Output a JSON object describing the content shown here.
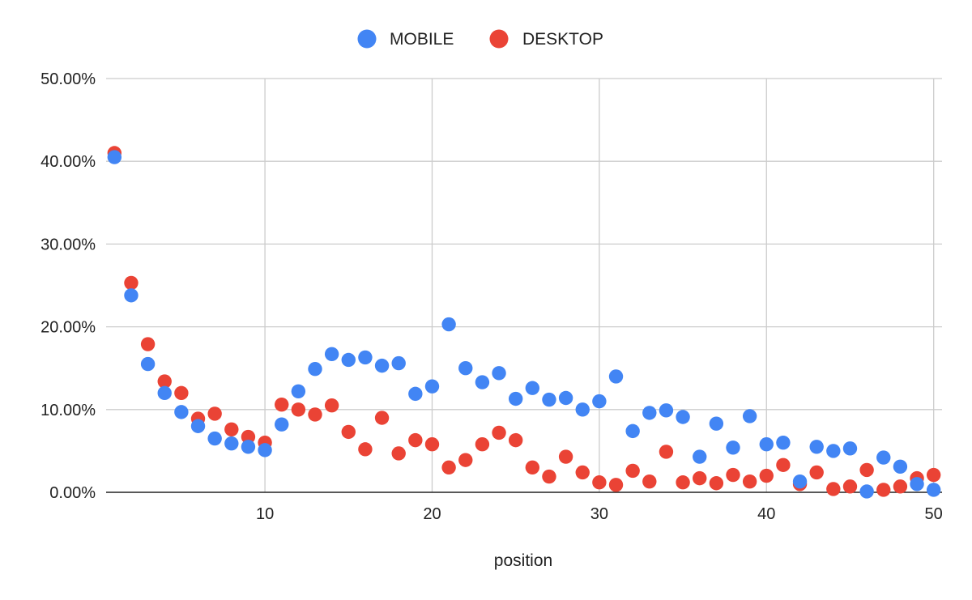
{
  "chart_data": {
    "type": "scatter",
    "title": "",
    "xlabel": "position",
    "ylabel": "",
    "xlim": [
      0.5,
      50.5
    ],
    "ylim": [
      0,
      50
    ],
    "xticks": [
      10,
      20,
      30,
      40,
      50
    ],
    "yticks": [
      0,
      10,
      20,
      30,
      40,
      50
    ],
    "ytick_labels": [
      "0.00%",
      "10.00%",
      "20.00%",
      "30.00%",
      "40.00%",
      "50.00%"
    ],
    "grid": true,
    "legend_position": "top-center",
    "series": [
      {
        "name": "MOBILE",
        "color": "#4285F4",
        "points": [
          [
            1,
            40.5
          ],
          [
            2,
            23.8
          ],
          [
            3,
            15.5
          ],
          [
            4,
            12.0
          ],
          [
            5,
            9.7
          ],
          [
            6,
            8.0
          ],
          [
            7,
            6.5
          ],
          [
            8,
            5.9
          ],
          [
            9,
            5.5
          ],
          [
            10,
            5.1
          ],
          [
            11,
            8.2
          ],
          [
            12,
            12.2
          ],
          [
            13,
            14.9
          ],
          [
            14,
            16.7
          ],
          [
            15,
            16.0
          ],
          [
            16,
            16.3
          ],
          [
            17,
            15.3
          ],
          [
            18,
            15.6
          ],
          [
            19,
            11.9
          ],
          [
            20,
            12.8
          ],
          [
            21,
            20.3
          ],
          [
            22,
            15.0
          ],
          [
            23,
            13.3
          ],
          [
            24,
            14.4
          ],
          [
            25,
            11.3
          ],
          [
            26,
            12.6
          ],
          [
            27,
            11.2
          ],
          [
            28,
            11.4
          ],
          [
            29,
            10.0
          ],
          [
            30,
            11.0
          ],
          [
            31,
            14.0
          ],
          [
            32,
            7.4
          ],
          [
            33,
            9.6
          ],
          [
            34,
            9.9
          ],
          [
            35,
            9.1
          ],
          [
            36,
            4.3
          ],
          [
            37,
            8.3
          ],
          [
            38,
            5.4
          ],
          [
            39,
            9.2
          ],
          [
            40,
            5.8
          ],
          [
            41,
            6.0
          ],
          [
            42,
            1.3
          ],
          [
            43,
            5.5
          ],
          [
            44,
            5.0
          ],
          [
            45,
            5.3
          ],
          [
            46,
            0.1
          ],
          [
            47,
            4.2
          ],
          [
            48,
            3.1
          ],
          [
            49,
            1.0
          ],
          [
            50,
            0.3
          ]
        ]
      },
      {
        "name": "DESKTOP",
        "color": "#EA4335",
        "points": [
          [
            1,
            41.0
          ],
          [
            2,
            25.3
          ],
          [
            3,
            17.9
          ],
          [
            4,
            13.4
          ],
          [
            5,
            12.0
          ],
          [
            6,
            8.9
          ],
          [
            7,
            9.5
          ],
          [
            8,
            7.6
          ],
          [
            9,
            6.7
          ],
          [
            10,
            6.0
          ],
          [
            11,
            10.6
          ],
          [
            12,
            10.0
          ],
          [
            13,
            9.4
          ],
          [
            14,
            10.5
          ],
          [
            15,
            7.3
          ],
          [
            16,
            5.2
          ],
          [
            17,
            9.0
          ],
          [
            18,
            4.7
          ],
          [
            19,
            6.3
          ],
          [
            20,
            5.8
          ],
          [
            21,
            3.0
          ],
          [
            22,
            3.9
          ],
          [
            23,
            5.8
          ],
          [
            24,
            7.2
          ],
          [
            25,
            6.3
          ],
          [
            26,
            3.0
          ],
          [
            27,
            1.9
          ],
          [
            28,
            4.3
          ],
          [
            29,
            2.4
          ],
          [
            30,
            1.2
          ],
          [
            31,
            0.9
          ],
          [
            32,
            2.6
          ],
          [
            33,
            1.3
          ],
          [
            34,
            4.9
          ],
          [
            35,
            1.2
          ],
          [
            36,
            1.7
          ],
          [
            37,
            1.1
          ],
          [
            38,
            2.1
          ],
          [
            39,
            1.3
          ],
          [
            40,
            2.0
          ],
          [
            41,
            3.3
          ],
          [
            42,
            1.0
          ],
          [
            43,
            2.4
          ],
          [
            44,
            0.4
          ],
          [
            45,
            0.7
          ],
          [
            46,
            2.7
          ],
          [
            47,
            0.3
          ],
          [
            48,
            0.7
          ],
          [
            49,
            1.7
          ],
          [
            50,
            2.1
          ]
        ]
      }
    ]
  }
}
